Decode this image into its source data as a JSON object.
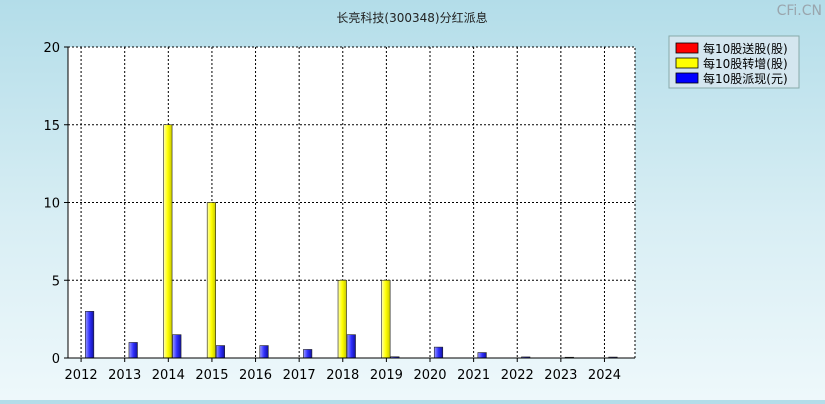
{
  "watermark": "CFi.CN",
  "chart_data": {
    "type": "bar",
    "title": "长亮科技(300348)分红派息",
    "categories": [
      "2012",
      "2013",
      "2014",
      "2015",
      "2016",
      "2017",
      "2018",
      "2019",
      "2020",
      "2021",
      "2022",
      "2023",
      "2024"
    ],
    "ylim": [
      0,
      20
    ],
    "yticks": [
      0,
      5,
      10,
      15,
      20
    ],
    "grid": true,
    "legend_position": "top-right",
    "series": [
      {
        "name": "每10股送股(股)",
        "color": "#ff0000",
        "values": [
          0,
          0,
          0,
          0,
          0,
          0,
          0,
          0,
          0,
          0,
          0,
          0,
          0
        ]
      },
      {
        "name": "每10股转增(股)",
        "color": "#ffff00",
        "values": [
          0,
          0,
          15,
          10,
          0,
          0,
          5,
          5,
          0,
          0,
          0,
          0,
          0
        ]
      },
      {
        "name": "每10股派现(元)",
        "color": "#0000ff",
        "values": [
          3,
          1,
          1.5,
          0.8,
          0.8,
          0.55,
          1.5,
          0.08,
          0.7,
          0.35,
          0.07,
          0.05,
          0.06
        ]
      }
    ]
  }
}
